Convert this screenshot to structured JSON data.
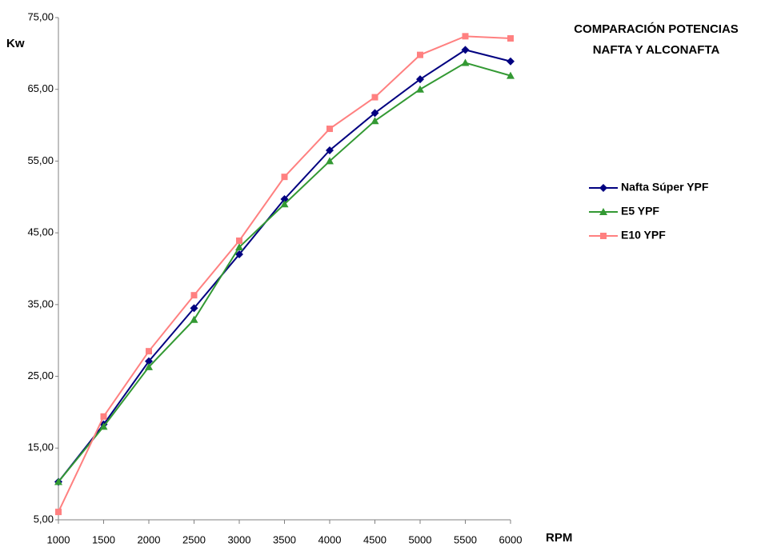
{
  "chart_data": {
    "type": "line",
    "title": [
      "COMPARACIÓN POTENCIAS",
      "NAFTA Y ALCONAFTA"
    ],
    "y_label": "Kw",
    "x_label": "RPM",
    "x": [
      1000,
      1500,
      2000,
      2500,
      3000,
      3500,
      4000,
      4500,
      5000,
      5500,
      6000
    ],
    "series": [
      {
        "name": "Nafta Súper YPF",
        "color": "#000080",
        "marker": "diamond",
        "values": [
          10.3,
          18.3,
          27.1,
          34.5,
          42.0,
          49.7,
          56.5,
          61.7,
          66.4,
          70.5,
          68.9
        ]
      },
      {
        "name": "E5  YPF",
        "color": "#339933",
        "marker": "triangle",
        "values": [
          10.3,
          18.0,
          26.3,
          32.9,
          43.0,
          49.0,
          55.0,
          60.6,
          65.0,
          68.7,
          66.9
        ]
      },
      {
        "name": "E10 YPF",
        "color": "#ff8080",
        "marker": "square",
        "values": [
          6.1,
          19.4,
          28.5,
          36.3,
          43.9,
          52.8,
          59.5,
          63.9,
          69.8,
          72.4,
          72.1
        ]
      }
    ],
    "xlim": [
      1000,
      6000
    ],
    "xticks": [
      1000,
      1500,
      2000,
      2500,
      3000,
      3500,
      4000,
      4500,
      5000,
      5500,
      6000
    ],
    "ylim": [
      5,
      75
    ],
    "yticks": [
      {
        "value": 5,
        "label": "5,00"
      },
      {
        "value": 15,
        "label": "15,00"
      },
      {
        "value": 25,
        "label": "25,00"
      },
      {
        "value": 35,
        "label": "35,00"
      },
      {
        "value": 45,
        "label": "45,00"
      },
      {
        "value": 55,
        "label": "55,00"
      },
      {
        "value": 65,
        "label": "65,00"
      },
      {
        "value": 75,
        "label": "75,00"
      }
    ],
    "grid": false,
    "legend": "right"
  }
}
